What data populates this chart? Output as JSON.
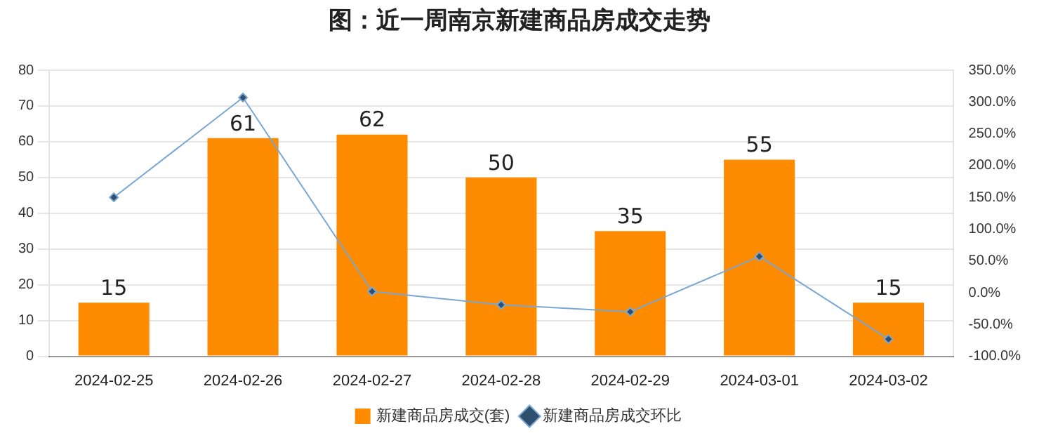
{
  "chart_data": {
    "type": "bar",
    "title": "图：近一周南京新建商品房成交走势",
    "categories": [
      "2024-02-25",
      "2024-02-26",
      "2024-02-27",
      "2024-02-28",
      "2024-02-29",
      "2024-03-01",
      "2024-03-02"
    ],
    "series": [
      {
        "name": "新建商品房成交(套)",
        "color": "#ff8c00",
        "values": [
          15,
          61,
          62,
          50,
          35,
          55,
          15
        ],
        "value_labels": [
          "15",
          "61",
          "62",
          "50",
          "35",
          "55",
          "15"
        ]
      },
      {
        "name": "新建商品房成交环比",
        "type": "line",
        "axis": "y2",
        "color": "#7ba7d4",
        "values": [
          150,
          307,
          2,
          -19,
          -30,
          57,
          -73
        ]
      }
    ],
    "ylim": [
      0,
      80
    ],
    "yticks": [
      0,
      10,
      20,
      30,
      40,
      50,
      60,
      70,
      80
    ],
    "y2lim": [
      -100,
      350
    ],
    "y2ticks": [
      {
        "value": -100,
        "label": "-100.0%"
      },
      {
        "value": -50,
        "label": "-50.0%"
      },
      {
        "value": 0,
        "label": "0.0%"
      },
      {
        "value": 50,
        "label": "50.0%"
      },
      {
        "value": 100,
        "label": "100.0%"
      },
      {
        "value": 150,
        "label": "150.0%"
      },
      {
        "value": 200,
        "label": "200.0%"
      },
      {
        "value": 250,
        "label": "250.0%"
      },
      {
        "value": 300,
        "label": "300.0%"
      },
      {
        "value": 350,
        "label": "350.0%"
      }
    ],
    "grid": "y",
    "legend": "bottom",
    "marker": "diamond",
    "line_style": "solid"
  }
}
